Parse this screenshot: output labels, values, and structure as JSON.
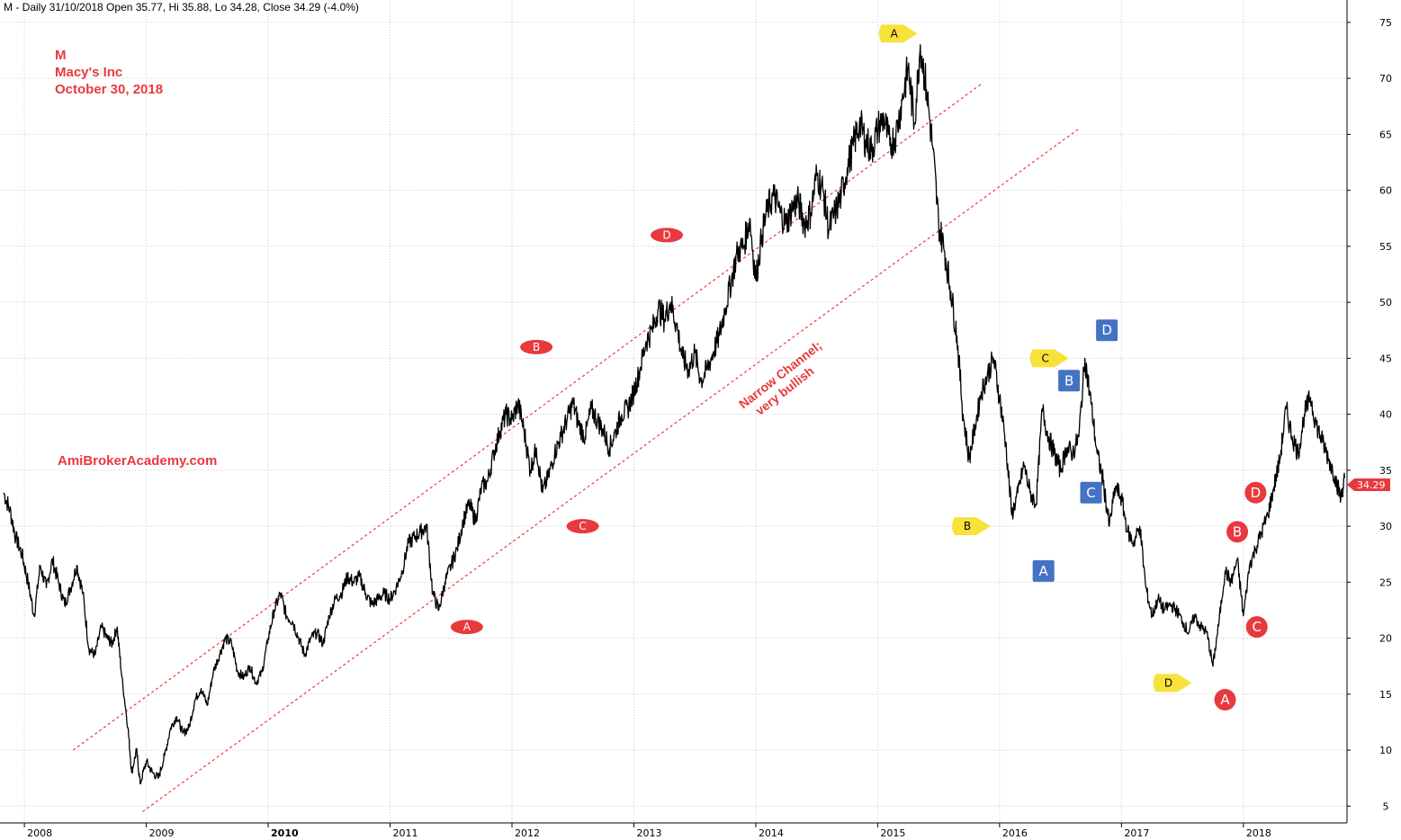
{
  "header": {
    "text": "M - Daily 31/10/2018 Open 35.77, Hi 35.88, Lo 34.28, Close 34.29 (-4.0%)"
  },
  "title_block": {
    "symbol": "M",
    "company": "Macy's Inc",
    "date": "October 30, 2018"
  },
  "watermark": "AmiBrokerAcademy.com",
  "channel_annotation": {
    "line1": "Narrow Channel;",
    "line2": "very bullish"
  },
  "last_price_label": "34.29",
  "colors": {
    "price_line": "#000000",
    "grid": "#cccccc",
    "channel": "#e8393e",
    "marker_red": "#e8393e",
    "marker_yellow": "#f7e23b",
    "marker_blue": "#4472c4",
    "text_red": "#e8393e"
  },
  "chart_data": {
    "type": "line",
    "title": "M - Daily 31/10/2018 Open 35.77, Hi 35.88, Lo 34.28, Close 34.29 (-4.0%)",
    "xlabel": "",
    "ylabel": "",
    "ylim": [
      3.5,
      77
    ],
    "xlim": [
      2007.8,
      2018.85
    ],
    "grid": true,
    "y_ticks": [
      5,
      10,
      15,
      20,
      25,
      30,
      35,
      40,
      45,
      50,
      55,
      60,
      65,
      70,
      75
    ],
    "x_ticks": [
      {
        "label": "2008",
        "x": 2008.0,
        "bold": false
      },
      {
        "label": "2009",
        "x": 2009.0,
        "bold": false
      },
      {
        "label": "2010",
        "x": 2010.0,
        "bold": true
      },
      {
        "label": "2011",
        "x": 2011.0,
        "bold": false
      },
      {
        "label": "2012",
        "x": 2012.0,
        "bold": false
      },
      {
        "label": "2013",
        "x": 2013.0,
        "bold": false
      },
      {
        "label": "2014",
        "x": 2014.0,
        "bold": false
      },
      {
        "label": "2015",
        "x": 2015.0,
        "bold": false
      },
      {
        "label": "2016",
        "x": 2016.0,
        "bold": false
      },
      {
        "label": "2017",
        "x": 2017.0,
        "bold": false
      },
      {
        "label": "2018",
        "x": 2018.0,
        "bold": false
      }
    ],
    "series": [
      {
        "x": [
          2007.83,
          2007.88,
          2007.93,
          2007.98,
          2008.03,
          2008.08,
          2008.13,
          2008.18,
          2008.23,
          2008.28,
          2008.33,
          2008.38,
          2008.43,
          2008.48,
          2008.53,
          2008.58,
          2008.63,
          2008.68,
          2008.72,
          2008.76,
          2008.8,
          2008.85,
          2008.88,
          2008.92,
          2008.95,
          2009.0,
          2009.05,
          2009.1,
          2009.15,
          2009.2,
          2009.25,
          2009.3,
          2009.35,
          2009.4,
          2009.45,
          2009.5,
          2009.55,
          2009.6,
          2009.65,
          2009.7,
          2009.75,
          2009.8,
          2009.85,
          2009.9,
          2009.95,
          2010.0,
          2010.05,
          2010.1,
          2010.15,
          2010.2,
          2010.25,
          2010.3,
          2010.35,
          2010.4,
          2010.45,
          2010.5,
          2010.55,
          2010.6,
          2010.65,
          2010.7,
          2010.75,
          2010.8,
          2010.85,
          2010.9,
          2010.95,
          2011.0,
          2011.05,
          2011.1,
          2011.15,
          2011.2,
          2011.25,
          2011.3,
          2011.35,
          2011.4,
          2011.45,
          2011.5,
          2011.55,
          2011.6,
          2011.65,
          2011.7,
          2011.75,
          2011.8,
          2011.85,
          2011.9,
          2011.95,
          2012.0,
          2012.05,
          2012.1,
          2012.15,
          2012.2,
          2012.25,
          2012.3,
          2012.35,
          2012.4,
          2012.45,
          2012.5,
          2012.55,
          2012.6,
          2012.65,
          2012.7,
          2012.75,
          2012.8,
          2012.85,
          2012.9,
          2012.95,
          2013.0,
          2013.05,
          2013.1,
          2013.15,
          2013.2,
          2013.25,
          2013.3,
          2013.35,
          2013.4,
          2013.45,
          2013.5,
          2013.55,
          2013.6,
          2013.65,
          2013.7,
          2013.75,
          2013.8,
          2013.85,
          2013.9,
          2013.95,
          2014.0,
          2014.05,
          2014.1,
          2014.15,
          2014.2,
          2014.25,
          2014.3,
          2014.35,
          2014.4,
          2014.45,
          2014.5,
          2014.55,
          2014.6,
          2014.65,
          2014.7,
          2014.75,
          2014.8,
          2014.85,
          2014.9,
          2014.95,
          2015.0,
          2015.05,
          2015.1,
          2015.15,
          2015.2,
          2015.25,
          2015.3,
          2015.35,
          2015.4,
          2015.45,
          2015.5,
          2015.55,
          2015.6,
          2015.65,
          2015.7,
          2015.75,
          2015.8,
          2015.85,
          2015.9,
          2015.95,
          2016.0,
          2016.05,
          2016.1,
          2016.15,
          2016.2,
          2016.25,
          2016.3,
          2016.35,
          2016.4,
          2016.45,
          2016.5,
          2016.55,
          2016.6,
          2016.65,
          2016.7,
          2016.75,
          2016.8,
          2016.85,
          2016.9,
          2016.95,
          2017.0,
          2017.05,
          2017.1,
          2017.15,
          2017.2,
          2017.25,
          2017.3,
          2017.35,
          2017.4,
          2017.45,
          2017.5,
          2017.55,
          2017.6,
          2017.65,
          2017.7,
          2017.75,
          2017.8,
          2017.85,
          2017.9,
          2017.95,
          2018.0,
          2018.05,
          2018.1,
          2018.15,
          2018.2,
          2018.25,
          2018.3,
          2018.35,
          2018.4,
          2018.45,
          2018.5,
          2018.55,
          2018.6,
          2018.65,
          2018.7,
          2018.75,
          2018.8,
          2018.83
        ],
        "values": [
          33.0,
          31.5,
          29.0,
          27.5,
          25.0,
          22.0,
          26.5,
          24.5,
          27.0,
          25.0,
          23.0,
          24.5,
          26.5,
          24.0,
          19.0,
          18.5,
          21.0,
          20.0,
          19.5,
          21.0,
          16.5,
          12.0,
          8.0,
          10.0,
          7.0,
          9.0,
          8.0,
          7.5,
          9.5,
          12.0,
          13.0,
          11.5,
          12.0,
          14.5,
          15.5,
          14.0,
          17.0,
          18.5,
          20.0,
          19.5,
          17.0,
          16.5,
          17.5,
          16.0,
          17.0,
          20.0,
          22.5,
          24.0,
          22.0,
          21.5,
          20.0,
          18.5,
          20.0,
          20.5,
          19.5,
          22.0,
          23.5,
          24.0,
          25.5,
          25.0,
          25.5,
          24.0,
          23.0,
          23.5,
          24.0,
          23.5,
          24.5,
          26.0,
          28.5,
          29.0,
          29.5,
          30.0,
          24.0,
          22.5,
          25.0,
          26.5,
          28.0,
          30.5,
          32.0,
          30.5,
          33.5,
          34.0,
          36.5,
          38.5,
          40.0,
          39.5,
          41.0,
          38.5,
          35.0,
          37.0,
          33.0,
          34.5,
          36.5,
          38.0,
          39.5,
          41.0,
          39.0,
          38.0,
          40.5,
          39.5,
          38.5,
          37.0,
          38.5,
          40.0,
          40.5,
          42.0,
          44.0,
          46.5,
          47.5,
          49.5,
          48.5,
          50.0,
          48.0,
          45.0,
          44.0,
          45.5,
          43.0,
          44.0,
          45.5,
          47.0,
          49.5,
          52.0,
          54.5,
          55.0,
          57.5,
          52.0,
          56.0,
          58.5,
          59.5,
          58.0,
          57.0,
          58.5,
          59.0,
          57.0,
          58.0,
          61.5,
          60.0,
          56.5,
          58.0,
          59.5,
          62.0,
          64.0,
          66.0,
          64.5,
          63.5,
          65.5,
          66.5,
          64.0,
          65.0,
          68.0,
          71.0,
          66.0,
          73.0,
          69.0,
          64.0,
          57.0,
          54.5,
          51.0,
          47.0,
          40.0,
          36.0,
          39.0,
          42.0,
          43.5,
          45.0,
          41.5,
          37.5,
          31.0,
          33.0,
          35.5,
          33.0,
          32.0,
          40.5,
          38.0,
          36.5,
          35.0,
          37.0,
          36.5,
          38.0,
          45.0,
          41.0,
          36.5,
          34.0,
          30.0,
          33.5,
          32.5,
          29.5,
          28.5,
          30.0,
          24.5,
          22.0,
          23.5,
          22.5,
          23.0,
          22.5,
          21.5,
          20.5,
          22.0,
          21.0,
          20.5,
          17.5,
          21.5,
          26.0,
          25.0,
          27.0,
          22.0,
          26.5,
          28.0,
          29.5,
          31.0,
          33.5,
          36.0,
          40.5,
          38.0,
          36.5,
          40.0,
          41.5,
          39.0,
          37.5,
          36.0,
          34.5,
          32.5,
          34.3
        ]
      }
    ],
    "annotations": [
      {
        "text": "Narrow Channel;\nvery bullish",
        "x": 2014.0,
        "y": 41.0
      }
    ],
    "channel_lines": [
      {
        "x1": 2008.4,
        "y1": 10.0,
        "x2": 2015.85,
        "y2": 69.5
      },
      {
        "x1": 2008.97,
        "y1": 4.5,
        "x2": 2016.65,
        "y2": 65.5
      }
    ],
    "markers": [
      {
        "label": "D",
        "style": "red-oval",
        "x": 2013.27,
        "y": 56.0
      },
      {
        "label": "B",
        "style": "red-oval",
        "x": 2012.2,
        "y": 46.0
      },
      {
        "label": "C",
        "style": "red-oval",
        "x": 2012.58,
        "y": 30.0
      },
      {
        "label": "A",
        "style": "red-oval",
        "x": 2011.63,
        "y": 21.0
      },
      {
        "label": "A",
        "style": "yellow-arrow",
        "x": 2015.15,
        "y": 74.0
      },
      {
        "label": "C",
        "style": "yellow-arrow",
        "x": 2016.39,
        "y": 45.0
      },
      {
        "label": "B",
        "style": "yellow-arrow",
        "x": 2015.75,
        "y": 30.0
      },
      {
        "label": "D",
        "style": "yellow-arrow",
        "x": 2017.4,
        "y": 16.0
      },
      {
        "label": "D",
        "style": "blue-square",
        "x": 2016.88,
        "y": 47.5
      },
      {
        "label": "B",
        "style": "blue-square",
        "x": 2016.57,
        "y": 43.0
      },
      {
        "label": "C",
        "style": "blue-square",
        "x": 2016.75,
        "y": 33.0
      },
      {
        "label": "A",
        "style": "blue-square",
        "x": 2016.36,
        "y": 26.0
      },
      {
        "label": "D",
        "style": "red-circle",
        "x": 2018.1,
        "y": 33.0
      },
      {
        "label": "B",
        "style": "red-circle",
        "x": 2017.95,
        "y": 29.5
      },
      {
        "label": "C",
        "style": "red-circle",
        "x": 2018.11,
        "y": 21.0
      },
      {
        "label": "A",
        "style": "red-circle",
        "x": 2017.85,
        "y": 14.5
      }
    ],
    "last_value": 34.29
  }
}
